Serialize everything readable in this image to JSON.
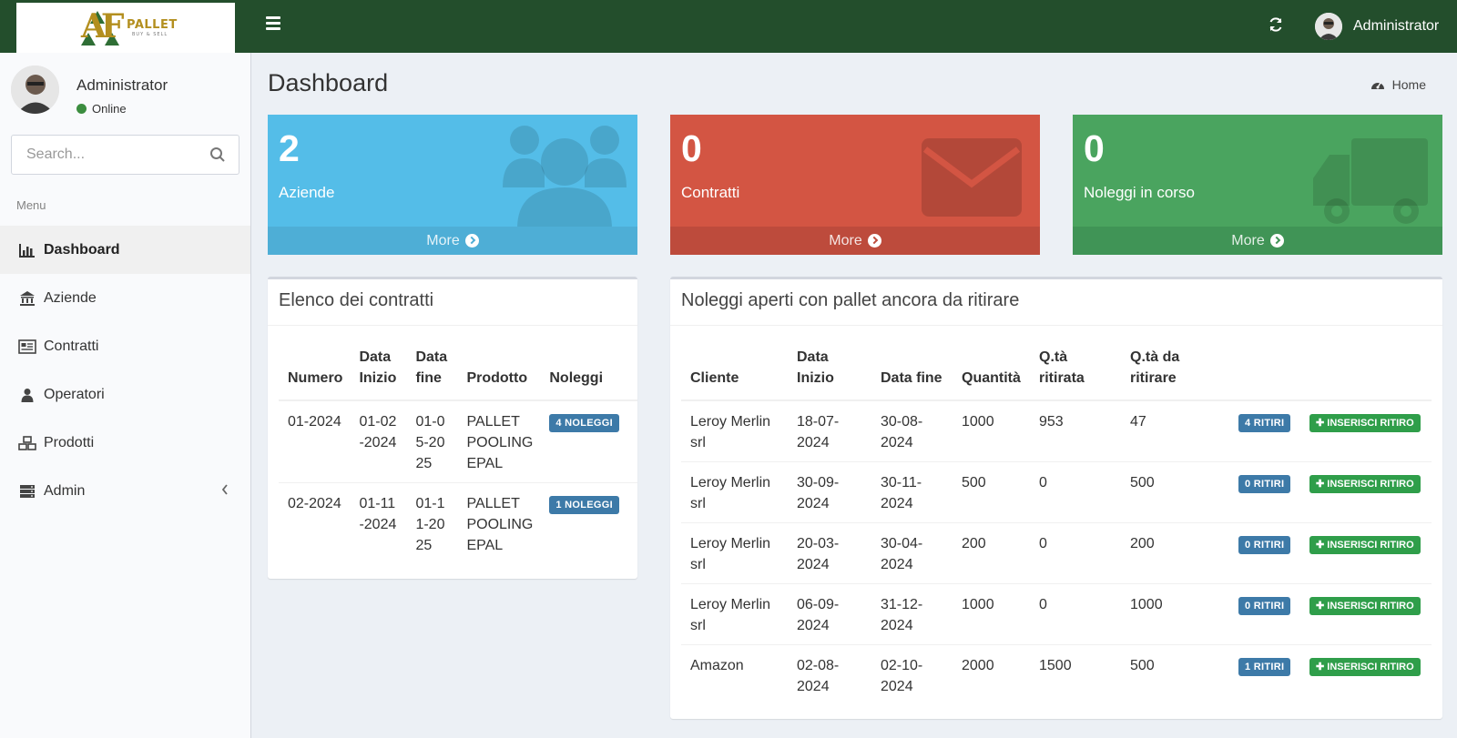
{
  "header": {
    "logo_text": "PALLET",
    "logo_sub": "BUY & SELL",
    "user_name": "Administrator"
  },
  "sidebar": {
    "user_name": "Administrator",
    "status": "Online",
    "search_placeholder": "Search...",
    "menu_header": "Menu",
    "items": [
      {
        "label": "Dashboard",
        "icon": "bar-chart-icon"
      },
      {
        "label": "Aziende",
        "icon": "bank-icon"
      },
      {
        "label": "Contratti",
        "icon": "newspaper-icon"
      },
      {
        "label": "Operatori",
        "icon": "user-icon"
      },
      {
        "label": "Prodotti",
        "icon": "cubes-icon"
      },
      {
        "label": "Admin",
        "icon": "server-icon"
      }
    ]
  },
  "page": {
    "title": "Dashboard",
    "breadcrumb": "Home"
  },
  "boxes": [
    {
      "value": "2",
      "label": "Aziende",
      "more": "More",
      "color": "#54bde8",
      "icon": "users-icon"
    },
    {
      "value": "0",
      "label": "Contratti",
      "more": "More",
      "color": "#d35543",
      "icon": "envelope-icon"
    },
    {
      "value": "0",
      "label": "Noleggi in corso",
      "more": "More",
      "color": "#4aa45f",
      "icon": "truck-icon"
    }
  ],
  "contracts": {
    "title": "Elenco dei contratti",
    "headers": [
      "Numero",
      "Data Inizio",
      "Data fine",
      "Prodotto",
      "Noleggi"
    ],
    "rows": [
      {
        "numero": "01-2024",
        "inizio": "01-02-2024",
        "fine": "01-05-2025",
        "prodotto": "PALLET POOLING EPAL",
        "noleggi": "4 NOLEGGI"
      },
      {
        "numero": "02-2024",
        "inizio": "01-11-2024",
        "fine": "01-11-2025",
        "prodotto": "PALLET POOLING EPAL",
        "noleggi": "1 NOLEGGI"
      }
    ]
  },
  "rentals": {
    "title": "Noleggi aperti con pallet ancora da ritirare",
    "headers": [
      "Cliente",
      "Data Inizio",
      "Data fine",
      "Quantità",
      "Q.tà ritirata",
      "Q.tà da ritirare"
    ],
    "action_label": "INSERISCI RITIRO",
    "rows": [
      {
        "cliente": "Leroy Merlin srl",
        "inizio": "18-07-2024",
        "fine": "30-08-2024",
        "quantita": "1000",
        "ritirata": "953",
        "da_ritirare": "47",
        "ritiri": "4 RITIRI"
      },
      {
        "cliente": "Leroy Merlin srl",
        "inizio": "30-09-2024",
        "fine": "30-11-2024",
        "quantita": "500",
        "ritirata": "0",
        "da_ritirare": "500",
        "ritiri": "0 RITIRI"
      },
      {
        "cliente": "Leroy Merlin srl",
        "inizio": "20-03-2024",
        "fine": "30-04-2024",
        "quantita": "200",
        "ritirata": "0",
        "da_ritirare": "200",
        "ritiri": "0 RITIRI"
      },
      {
        "cliente": "Leroy Merlin srl",
        "inizio": "06-09-2024",
        "fine": "31-12-2024",
        "quantita": "1000",
        "ritirata": "0",
        "da_ritirare": "1000",
        "ritiri": "0 RITIRI"
      },
      {
        "cliente": "Amazon",
        "inizio": "02-08-2024",
        "fine": "02-10-2024",
        "quantita": "2000",
        "ritirata": "1500",
        "da_ritirare": "500",
        "ritiri": "1 RITIRI"
      }
    ]
  }
}
